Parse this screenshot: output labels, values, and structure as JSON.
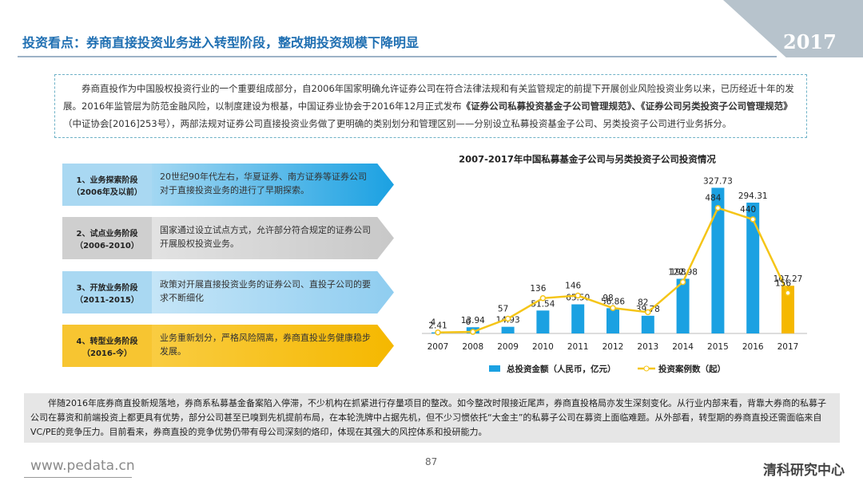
{
  "header": {
    "title": "投资看点：券商直接投资业务进入转型阶段，整改期投资规模下降明显",
    "year": "2017"
  },
  "intro": {
    "segments": [
      {
        "text": "券商直投作为中国股权投资行业的一个重要组成部分，自2006年国家明确允许证券公司在符合法律法规和有关监管规定的前提下开展创业风险投资业务以来，已历经近十年的发展。2016年监管层为防范金融风险，以制度建设为根基，中国证券业协会于2016年12月正式发布",
        "bold": false
      },
      {
        "text": "《证券公司私募投资基金子公司管理规范》、《证券公司另类投资子公司管理规范》",
        "bold": true
      },
      {
        "text": "（中证协会[2016]253号），两部法规对证券公司直接投资业务做了更明确的类别划分和管理区别——分别设立私募投资基金子公司、另类投资子公司进行业务拆分。",
        "bold": false
      }
    ]
  },
  "stages": [
    {
      "label": "1、业务探索阶段",
      "period": "（2006年及以前）",
      "text": "20世纪90年代左右，华夏证券、南方证券等证券公司对于直接投资业务的进行了早期探索。"
    },
    {
      "label": "2、试点业务阶段",
      "period": "（2006-2010）",
      "text": "国家通过设立试点方式，允许部分符合规定的证券公司开展股权投资业务。"
    },
    {
      "label": "3、开放业务阶段",
      "period": "（2011-2015）",
      "text": "政策对开展直接投资业务的证券公司、直投子公司的要求不断细化"
    },
    {
      "label": "4、转型业务阶段",
      "period": "（2016-今）",
      "text": "业务重新划分，严格风险隔离，券商直投业务健康稳步发展。"
    }
  ],
  "chart_data": {
    "type": "bar",
    "title": "2007-2017年中国私募基金子公司与另类投资子公司投资情况",
    "categories": [
      "2007",
      "2008",
      "2009",
      "2010",
      "2011",
      "2012",
      "2013",
      "2014",
      "2015",
      "2016",
      "2017"
    ],
    "ylim": [
      0,
      350
    ],
    "y2lim": [
      0,
      600
    ],
    "series": [
      {
        "name": "总投资金额（人民币，亿元）",
        "type": "bar",
        "color": "#1ba1e2",
        "colors": [
          "#1ba1e2",
          "#1ba1e2",
          "#1ba1e2",
          "#1ba1e2",
          "#1ba1e2",
          "#1ba1e2",
          "#1ba1e2",
          "#1ba1e2",
          "#1ba1e2",
          "#1ba1e2",
          "#f5b800"
        ],
        "values": [
          2.41,
          13.94,
          14.93,
          51.54,
          65.5,
          56.86,
          39.78,
          122.98,
          327.73,
          294.31,
          107.27
        ],
        "value_labels": [
          "2.41",
          "13.94",
          "14.93",
          "51.54",
          "65.50",
          "56.86",
          "39.78",
          "122.98",
          "327.73",
          "294.31",
          "107.27"
        ]
      },
      {
        "name": "投资案例数（起）",
        "type": "line",
        "axis": "y2",
        "color": "#f5c518",
        "values": [
          4,
          6,
          57,
          136,
          146,
          98,
          82,
          198,
          484,
          440,
          156
        ]
      }
    ]
  },
  "summary": "伴随2016年底券商直投新规落地，券商系私募基金备案陷入停滞，不少机构在抓紧进行存量项目的整改。如今整改时限接近尾声，券商直投格局亦发生深刻变化。从行业内部来看，背靠大券商的私募子公司在募资和前端投资上都更具有优势，部分公司甚至已嗅到先机提前布局，在本轮洗牌中占据先机，但不少习惯依托“大金主”的私募子公司在募资上面临难题。从外部看，转型期的券商直投还需面临来自VC/PE的竞争压力。目前看来，券商直投的竞争优势仍带有母公司深刻的烙印，体现在其强大的风控体系和投研能力。",
  "footer": {
    "website": "www.pedata.cn",
    "page": "87",
    "brand": "清科研究中心"
  }
}
